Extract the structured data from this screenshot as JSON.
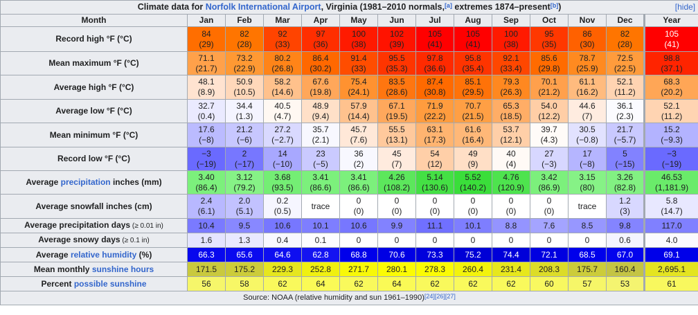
{
  "title": {
    "prefix": "Climate data for ",
    "link": "Norfolk International Airport",
    "suffix": ", Virginia (1981–2010 normals,",
    "ref1": "[a]",
    "middle": " extremes 1874–present",
    "ref2": "[b]",
    "end": ")",
    "hide": "[hide]"
  },
  "header": [
    "Month",
    "Jan",
    "Feb",
    "Mar",
    "Apr",
    "May",
    "Jun",
    "Jul",
    "Aug",
    "Sep",
    "Oct",
    "Nov",
    "Dec",
    "Year"
  ],
  "rows": [
    {
      "label": "Record high °F (°C)",
      "cells": [
        {
          "v": "84",
          "s": "(29)",
          "bg": "#ff6e00"
        },
        {
          "v": "82",
          "s": "(28)",
          "bg": "#ff7500"
        },
        {
          "v": "92",
          "s": "(33)",
          "bg": "#ff4400"
        },
        {
          "v": "97",
          "s": "(36)",
          "bg": "#ff2e00"
        },
        {
          "v": "100",
          "s": "(38)",
          "bg": "#ff1a00"
        },
        {
          "v": "102",
          "s": "(39)",
          "bg": "#ff1300"
        },
        {
          "v": "105",
          "s": "(41)",
          "bg": "#ff0000"
        },
        {
          "v": "105",
          "s": "(41)",
          "bg": "#ff0000"
        },
        {
          "v": "100",
          "s": "(38)",
          "bg": "#ff1a00"
        },
        {
          "v": "95",
          "s": "(35)",
          "bg": "#ff3800"
        },
        {
          "v": "86",
          "s": "(30)",
          "bg": "#ff6100"
        },
        {
          "v": "82",
          "s": "(28)",
          "bg": "#ff7500"
        },
        {
          "v": "105",
          "s": "(41)",
          "bg": "#ff0000",
          "fg": "#fff"
        }
      ]
    },
    {
      "label": "Mean maximum °F (°C)",
      "cells": [
        {
          "v": "71.1",
          "s": "(21.7)",
          "bg": "#ffa14a"
        },
        {
          "v": "73.2",
          "s": "(22.9)",
          "bg": "#ff9933"
        },
        {
          "v": "80.2",
          "s": "(26.8)",
          "bg": "#ff8418"
        },
        {
          "v": "86.4",
          "s": "(30.2)",
          "bg": "#ff6800"
        },
        {
          "v": "91.4",
          "s": "(33)",
          "bg": "#ff4d00"
        },
        {
          "v": "95.5",
          "s": "(35.3)",
          "bg": "#ff3500"
        },
        {
          "v": "97.8",
          "s": "(36.6)",
          "bg": "#ff2a00"
        },
        {
          "v": "95.8",
          "s": "(35.4)",
          "bg": "#ff3400"
        },
        {
          "v": "92.1",
          "s": "(33.4)",
          "bg": "#ff4700"
        },
        {
          "v": "85.6",
          "s": "(29.8)",
          "bg": "#ff6b00"
        },
        {
          "v": "78.7",
          "s": "(25.9)",
          "bg": "#ff8a20"
        },
        {
          "v": "72.5",
          "s": "(22.5)",
          "bg": "#ff9c3c"
        },
        {
          "v": "98.8",
          "s": "(37.1)",
          "bg": "#ff2400"
        }
      ]
    },
    {
      "label": "Average high °F (°C)",
      "cells": [
        {
          "v": "48.1",
          "s": "(8.9)",
          "bg": "#ffe3d0"
        },
        {
          "v": "50.9",
          "s": "(10.5)",
          "bg": "#ffd8ba"
        },
        {
          "v": "58.2",
          "s": "(14.6)",
          "bg": "#ffc18c"
        },
        {
          "v": "67.6",
          "s": "(19.8)",
          "bg": "#ffa75a"
        },
        {
          "v": "75.4",
          "s": "(24.1)",
          "bg": "#ff9230"
        },
        {
          "v": "83.5",
          "s": "(28.6)",
          "bg": "#ff7610"
        },
        {
          "v": "87.4",
          "s": "(30.8)",
          "bg": "#ff6a00"
        },
        {
          "v": "85.1",
          "s": "(29.5)",
          "bg": "#ff7208"
        },
        {
          "v": "79.3",
          "s": "(26.3)",
          "bg": "#ff8820"
        },
        {
          "v": "70.1",
          "s": "(21.2)",
          "bg": "#ffa04c"
        },
        {
          "v": "61.1",
          "s": "(16.2)",
          "bg": "#ffbb7e"
        },
        {
          "v": "52.1",
          "s": "(11.2)",
          "bg": "#ffd4b2"
        },
        {
          "v": "68.3",
          "s": "(20.2)",
          "bg": "#ffa656"
        }
      ]
    },
    {
      "label": "Average low °F (°C)",
      "cells": [
        {
          "v": "32.7",
          "s": "(0.4)",
          "bg": "#eaeaff"
        },
        {
          "v": "34.4",
          "s": "(1.3)",
          "bg": "#f4f4ff"
        },
        {
          "v": "40.5",
          "s": "(4.7)",
          "bg": "#fff8f2"
        },
        {
          "v": "48.9",
          "s": "(9.4)",
          "bg": "#ffe0c8"
        },
        {
          "v": "57.9",
          "s": "(14.4)",
          "bg": "#ffc28e"
        },
        {
          "v": "67.1",
          "s": "(19.5)",
          "bg": "#ffa85c"
        },
        {
          "v": "71.9",
          "s": "(22.2)",
          "bg": "#ff9c3e"
        },
        {
          "v": "70.7",
          "s": "(21.5)",
          "bg": "#ff9f44"
        },
        {
          "v": "65.3",
          "s": "(18.5)",
          "bg": "#ffad66"
        },
        {
          "v": "54.0",
          "s": "(12.2)",
          "bg": "#ffcea6"
        },
        {
          "v": "44.6",
          "s": "(7)",
          "bg": "#ffece0"
        },
        {
          "v": "36.1",
          "s": "(2.3)",
          "bg": "#fbfbff"
        },
        {
          "v": "52.1",
          "s": "(11.2)",
          "bg": "#ffd4b2"
        }
      ]
    },
    {
      "label": "Mean minimum °F (°C)",
      "cells": [
        {
          "v": "17.6",
          "s": "(−8)",
          "bg": "#bbbbff"
        },
        {
          "v": "21.2",
          "s": "(−6)",
          "bg": "#c7c7ff"
        },
        {
          "v": "27.2",
          "s": "(−2.7)",
          "bg": "#d9d9ff"
        },
        {
          "v": "35.7",
          "s": "(2.1)",
          "bg": "#f8f8ff"
        },
        {
          "v": "45.7",
          "s": "(7.6)",
          "bg": "#ffe8d8"
        },
        {
          "v": "55.5",
          "s": "(13.1)",
          "bg": "#ffc99c"
        },
        {
          "v": "63.1",
          "s": "(17.3)",
          "bg": "#ffb470"
        },
        {
          "v": "61.6",
          "s": "(16.4)",
          "bg": "#ffb878"
        },
        {
          "v": "53.7",
          "s": "(12.1)",
          "bg": "#ffcfa8"
        },
        {
          "v": "39.7",
          "s": "(4.3)",
          "bg": "#fffbf8"
        },
        {
          "v": "30.5",
          "s": "(−0.8)",
          "bg": "#e2e2ff"
        },
        {
          "v": "21.7",
          "s": "(−5.7)",
          "bg": "#c9c9ff"
        },
        {
          "v": "15.2",
          "s": "(−9.3)",
          "bg": "#b3b3ff"
        }
      ]
    },
    {
      "label": "Record low °F (°C)",
      "cells": [
        {
          "v": "−3",
          "s": "(−19)",
          "bg": "#6a6aff"
        },
        {
          "v": "2",
          "s": "(−17)",
          "bg": "#7777ff"
        },
        {
          "v": "14",
          "s": "(−10)",
          "bg": "#a8a8ff"
        },
        {
          "v": "23",
          "s": "(−5)",
          "bg": "#cacaff"
        },
        {
          "v": "36",
          "s": "(2)",
          "bg": "#f8f8ff"
        },
        {
          "v": "45",
          "s": "(7)",
          "bg": "#ffebde"
        },
        {
          "v": "54",
          "s": "(12)",
          "bg": "#ffcfa8"
        },
        {
          "v": "49",
          "s": "(9)",
          "bg": "#ffdfc6"
        },
        {
          "v": "40",
          "s": "(4)",
          "bg": "#fffaf6"
        },
        {
          "v": "27",
          "s": "(−3)",
          "bg": "#d7d7ff"
        },
        {
          "v": "17",
          "s": "(−8)",
          "bg": "#b5b5ff"
        },
        {
          "v": "5",
          "s": "(−15)",
          "bg": "#8282ff"
        },
        {
          "v": "−3",
          "s": "(−19)",
          "bg": "#6a6aff"
        }
      ]
    },
    {
      "label": "Average precipitation inches (mm)",
      "label_link": "precipitation",
      "cells": [
        {
          "v": "3.40",
          "s": "(86.4)",
          "bg": "#7cf07c"
        },
        {
          "v": "3.12",
          "s": "(79.2)",
          "bg": "#86f286"
        },
        {
          "v": "3.68",
          "s": "(93.5)",
          "bg": "#74ee74"
        },
        {
          "v": "3.41",
          "s": "(86.6)",
          "bg": "#7cf07c"
        },
        {
          "v": "3.41",
          "s": "(86.6)",
          "bg": "#7cf07c"
        },
        {
          "v": "4.26",
          "s": "(108.2)",
          "bg": "#5ce75c"
        },
        {
          "v": "5.14",
          "s": "(130.6)",
          "bg": "#44e044"
        },
        {
          "v": "5.52",
          "s": "(140.2)",
          "bg": "#3ade3a"
        },
        {
          "v": "4.76",
          "s": "(120.9)",
          "bg": "#4ee34e"
        },
        {
          "v": "3.42",
          "s": "(86.9)",
          "bg": "#7cf07c"
        },
        {
          "v": "3.15",
          "s": "(80)",
          "bg": "#86f286"
        },
        {
          "v": "3.26",
          "s": "(82.8)",
          "bg": "#82f182"
        },
        {
          "v": "46.53",
          "s": "(1,181.9)",
          "bg": "#6aeb6a"
        }
      ]
    },
    {
      "label": "Average snowfall inches (cm)",
      "cells": [
        {
          "v": "2.4",
          "s": "(6.1)",
          "bg": "#b8b8ff"
        },
        {
          "v": "2.0",
          "s": "(5.1)",
          "bg": "#c2c2ff"
        },
        {
          "v": "0.2",
          "s": "(0.5)",
          "bg": "#f6f6ff"
        },
        {
          "v": "trace",
          "s": "",
          "bg": "#ffffff"
        },
        {
          "v": "0",
          "s": "(0)",
          "bg": "#ffffff"
        },
        {
          "v": "0",
          "s": "(0)",
          "bg": "#ffffff"
        },
        {
          "v": "0",
          "s": "(0)",
          "bg": "#ffffff"
        },
        {
          "v": "0",
          "s": "(0)",
          "bg": "#ffffff"
        },
        {
          "v": "0",
          "s": "(0)",
          "bg": "#ffffff"
        },
        {
          "v": "0",
          "s": "(0)",
          "bg": "#ffffff"
        },
        {
          "v": "trace",
          "s": "",
          "bg": "#ffffff"
        },
        {
          "v": "1.2",
          "s": "(3)",
          "bg": "#d8d8ff"
        },
        {
          "v": "5.8",
          "s": "(14.7)",
          "bg": "#e8e8ff"
        }
      ]
    },
    {
      "label": "Average precipitation days",
      "label_small": " (≥ 0.01 in)",
      "single": true,
      "cells": [
        {
          "v": "10.4",
          "bg": "#7a7aff"
        },
        {
          "v": "9.5",
          "bg": "#8888ff"
        },
        {
          "v": "10.6",
          "bg": "#7777ff"
        },
        {
          "v": "10.1",
          "bg": "#7e7eff"
        },
        {
          "v": "10.6",
          "bg": "#7777ff"
        },
        {
          "v": "9.9",
          "bg": "#8282ff"
        },
        {
          "v": "11.1",
          "bg": "#7070ff"
        },
        {
          "v": "10.1",
          "bg": "#7e7eff"
        },
        {
          "v": "8.8",
          "bg": "#9494ff"
        },
        {
          "v": "7.6",
          "bg": "#a4a4ff"
        },
        {
          "v": "8.5",
          "bg": "#9797ff"
        },
        {
          "v": "9.8",
          "bg": "#8484ff"
        },
        {
          "v": "117.0",
          "bg": "#8080ff"
        }
      ]
    },
    {
      "label": "Average snowy days",
      "label_small": " (≥ 0.1 in)",
      "single": true,
      "cells": [
        {
          "v": "1.6",
          "bg": "#e4e4ff"
        },
        {
          "v": "1.3",
          "bg": "#e9e9ff"
        },
        {
          "v": "0.4",
          "bg": "#f8f8ff"
        },
        {
          "v": "0.1",
          "bg": "#fdfdff"
        },
        {
          "v": "0",
          "bg": "#ffffff"
        },
        {
          "v": "0",
          "bg": "#ffffff"
        },
        {
          "v": "0",
          "bg": "#ffffff"
        },
        {
          "v": "0",
          "bg": "#ffffff"
        },
        {
          "v": "0",
          "bg": "#ffffff"
        },
        {
          "v": "0",
          "bg": "#ffffff"
        },
        {
          "v": "0",
          "bg": "#ffffff"
        },
        {
          "v": "0.6",
          "bg": "#f4f4ff"
        },
        {
          "v": "4.0",
          "bg": "#fbfbff"
        }
      ]
    },
    {
      "label": "Average relative humidity (%)",
      "label_link": "relative humidity",
      "single": true,
      "cells": [
        {
          "v": "66.3",
          "bg": "#0808ee",
          "fg": "#fff"
        },
        {
          "v": "65.6",
          "bg": "#0a0aef",
          "fg": "#fff"
        },
        {
          "v": "64.6",
          "bg": "#0e0ef0",
          "fg": "#fff"
        },
        {
          "v": "62.8",
          "bg": "#1414f1",
          "fg": "#fff"
        },
        {
          "v": "68.8",
          "bg": "#0000ea",
          "fg": "#fff"
        },
        {
          "v": "70.6",
          "bg": "#0000e4",
          "fg": "#fff"
        },
        {
          "v": "73.3",
          "bg": "#0000dc",
          "fg": "#fff"
        },
        {
          "v": "75.2",
          "bg": "#0000d6",
          "fg": "#fff"
        },
        {
          "v": "74.4",
          "bg": "#0000d9",
          "fg": "#fff"
        },
        {
          "v": "72.1",
          "bg": "#0000e0",
          "fg": "#fff"
        },
        {
          "v": "68.5",
          "bg": "#0000eb",
          "fg": "#fff"
        },
        {
          "v": "67.0",
          "bg": "#0404ed",
          "fg": "#fff"
        },
        {
          "v": "69.1",
          "bg": "#0000e9",
          "fg": "#fff"
        }
      ]
    },
    {
      "label": "Mean monthly sunshine hours",
      "label_link": "sunshine hours",
      "single": true,
      "cells": [
        {
          "v": "171.5",
          "bg": "#c9c93e"
        },
        {
          "v": "175.2",
          "bg": "#cccc3a"
        },
        {
          "v": "229.3",
          "bg": "#e6e61e"
        },
        {
          "v": "252.8",
          "bg": "#f0f010"
        },
        {
          "v": "271.7",
          "bg": "#f8f808"
        },
        {
          "v": "280.1",
          "bg": "#fbfb04"
        },
        {
          "v": "278.3",
          "bg": "#fbfb04"
        },
        {
          "v": "260.4",
          "bg": "#f3f30c"
        },
        {
          "v": "231.4",
          "bg": "#e7e71c"
        },
        {
          "v": "208.3",
          "bg": "#dcdc28"
        },
        {
          "v": "175.7",
          "bg": "#cccc3a"
        },
        {
          "v": "160.4",
          "bg": "#c4c444"
        },
        {
          "v": "2,695.1",
          "bg": "#e4e420"
        }
      ]
    },
    {
      "label": "Percent possible sunshine",
      "label_link": "possible sunshine",
      "single": true,
      "cells": [
        {
          "v": "56",
          "bg": "#f6f66a"
        },
        {
          "v": "58",
          "bg": "#f7f766"
        },
        {
          "v": "62",
          "bg": "#f9f95c"
        },
        {
          "v": "64",
          "bg": "#fafa56"
        },
        {
          "v": "62",
          "bg": "#f9f95c"
        },
        {
          "v": "64",
          "bg": "#fafa56"
        },
        {
          "v": "62",
          "bg": "#f9f95c"
        },
        {
          "v": "62",
          "bg": "#f9f95c"
        },
        {
          "v": "62",
          "bg": "#f9f95c"
        },
        {
          "v": "60",
          "bg": "#f8f860"
        },
        {
          "v": "57",
          "bg": "#f6f668"
        },
        {
          "v": "53",
          "bg": "#f4f470"
        },
        {
          "v": "61",
          "bg": "#f8f85e"
        }
      ]
    }
  ],
  "source": {
    "text": "Source: NOAA (relative humidity and sun 1961–1990)",
    "refs": "[24][26][27]"
  }
}
